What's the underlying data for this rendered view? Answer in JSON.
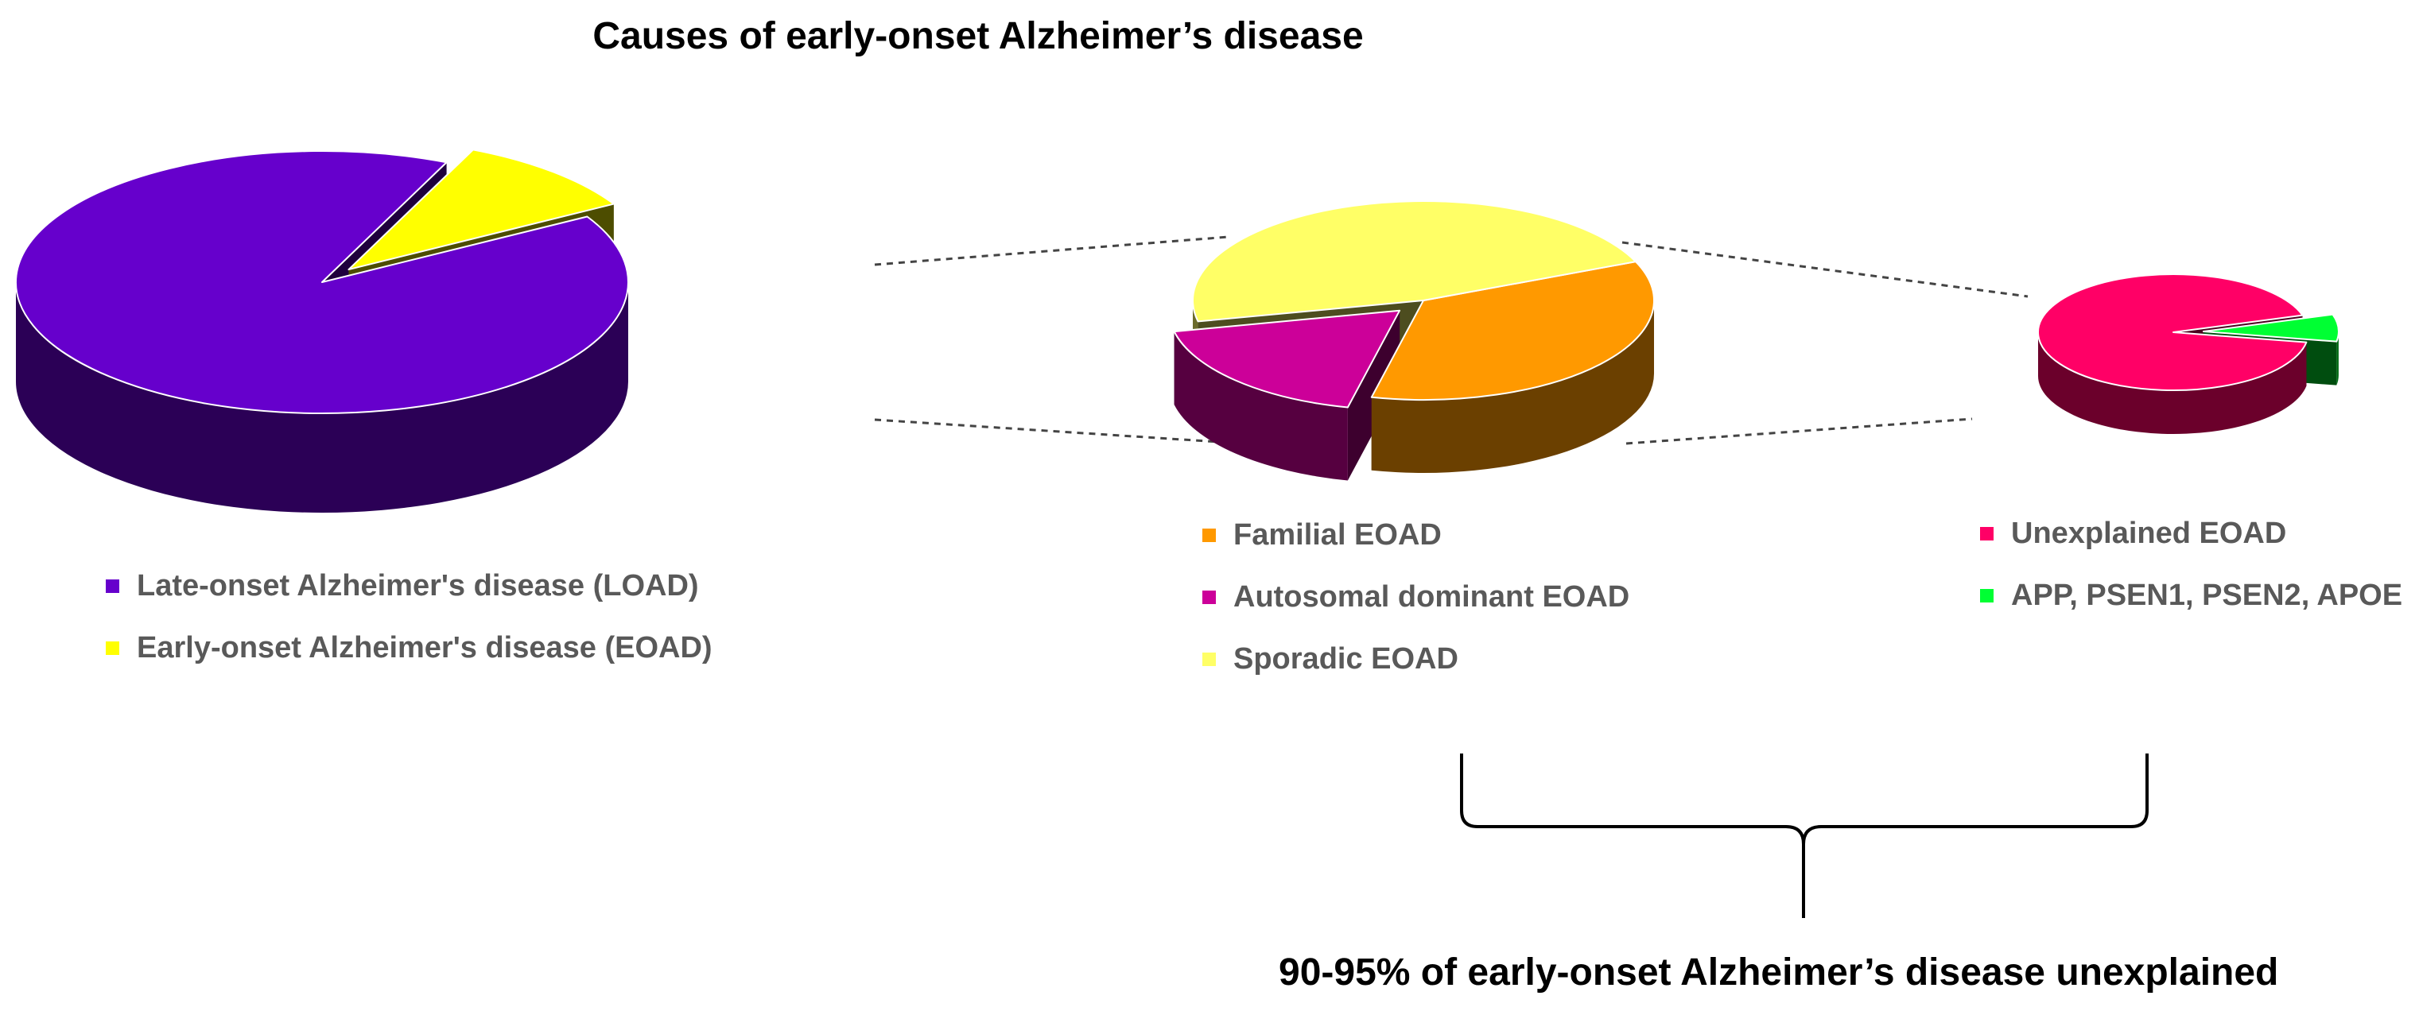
{
  "title": "Causes of early-onset Alzheimer’s disease",
  "footnote": "90-95% of early-onset Alzheimer’s disease unexplained",
  "chart_data": [
    {
      "id": "overall",
      "type": "pie",
      "style": "3d-exploded",
      "series": [
        {
          "name": "Late-onset Alzheimer's disease (LOAD)",
          "value": 90,
          "color": "#6600CC",
          "exploded": false
        },
        {
          "name": "Early-onset Alzheimer's disease (EOAD)",
          "value": 10,
          "color": "#FFFF00",
          "exploded": true
        }
      ]
    },
    {
      "id": "eoad",
      "type": "pie",
      "style": "3d-exploded",
      "detail_of": "Early-onset Alzheimer's disease (EOAD)",
      "series": [
        {
          "name": "Familial EOAD",
          "value": 35,
          "color": "#FF9900",
          "exploded": false
        },
        {
          "name": "Autosomal dominant EOAD",
          "value": 18,
          "color": "#CC0099",
          "exploded": true
        },
        {
          "name": "Sporadic EOAD",
          "value": 47,
          "color": "#FFFF66",
          "exploded": false
        }
      ]
    },
    {
      "id": "ad-eoad",
      "type": "pie",
      "style": "3d-exploded",
      "detail_of": "Autosomal dominant EOAD",
      "series": [
        {
          "name": "Unexplained EOAD",
          "value": 92.5,
          "color": "#FF0066",
          "exploded": false
        },
        {
          "name": "APP, PSEN1, PSEN2, APOE",
          "value": 7.5,
          "color": "#00FF33",
          "exploded": true
        }
      ]
    }
  ]
}
